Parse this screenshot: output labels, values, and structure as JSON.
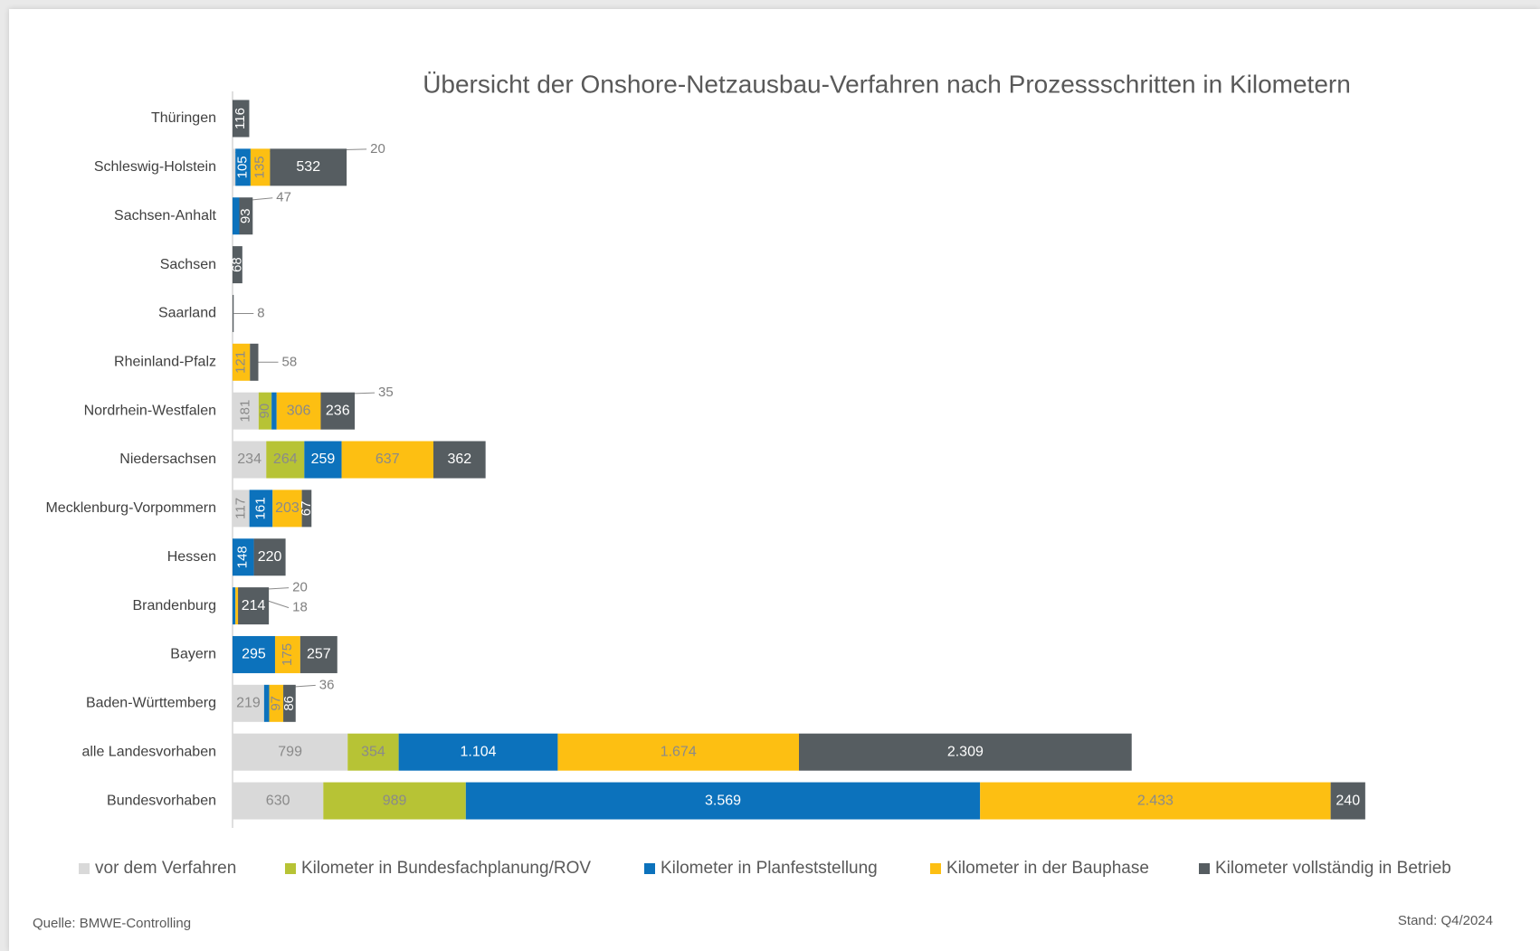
{
  "chart_data": {
    "type": "stacked-bar-horizontal",
    "title": "Übersicht der Onshore-Netzausbau-Verfahren nach Prozessschritten in Kilometern",
    "source": "Quelle: BMWE-Controlling",
    "date_note": "Stand: Q4/2024",
    "categories": [
      "Thüringen",
      "Schleswig-Holstein",
      "Sachsen-Anhalt",
      "Sachsen",
      "Saarland",
      "Rheinland-Pfalz",
      "Nordrhein-Westfalen",
      "Niedersachsen",
      "Mecklenburg-Vorpommern",
      "Hessen",
      "Brandenburg",
      "Bayern",
      "Baden-Württemberg",
      "alle Landesvorhaben",
      "Bundesvorhaben"
    ],
    "xlim": [
      0,
      8000
    ],
    "legend": "bottom",
    "series": [
      {
        "name": "vor dem Verfahren",
        "color": "#d9d9d9",
        "values": [
          null,
          20,
          null,
          null,
          null,
          null,
          181,
          234,
          117,
          null,
          null,
          null,
          219,
          799,
          630
        ]
      },
      {
        "name": "Kilometer in Bundesfachplanung/ROV",
        "color": "#b7c335",
        "values": [
          null,
          null,
          null,
          null,
          null,
          null,
          90,
          264,
          null,
          null,
          null,
          null,
          null,
          354,
          989
        ]
      },
      {
        "name": "Kilometer in Planfeststellung",
        "color": "#0c72bc",
        "values": [
          null,
          105,
          47,
          null,
          null,
          null,
          35,
          259,
          161,
          148,
          20,
          295,
          36,
          1104,
          3569
        ],
        "value_labels": [
          null,
          "105",
          "47",
          null,
          null,
          null,
          "35",
          "259",
          "161",
          "148",
          "20",
          "295",
          "36",
          "1.104",
          "3.569"
        ]
      },
      {
        "name": "Kilometer in der Bauphase",
        "color": "#fdbf12",
        "values": [
          null,
          135,
          null,
          null,
          null,
          121,
          306,
          637,
          203,
          null,
          18,
          175,
          97,
          1674,
          2433
        ],
        "value_labels": [
          null,
          "135",
          null,
          null,
          null,
          "121",
          "306",
          "637",
          "203",
          null,
          "18",
          "175",
          "97",
          "1.674",
          "2.433"
        ]
      },
      {
        "name": "Kilometer vollständig in Betrieb",
        "color": "#565d61",
        "values": [
          116,
          532,
          93,
          68,
          8,
          58,
          236,
          362,
          67,
          220,
          214,
          257,
          86,
          2309,
          240
        ],
        "value_labels": [
          "116",
          "532",
          "93",
          "68",
          "8",
          "58",
          "236",
          "362",
          "67",
          "220",
          "214",
          "257",
          "86",
          "2.309",
          "240"
        ]
      }
    ]
  }
}
